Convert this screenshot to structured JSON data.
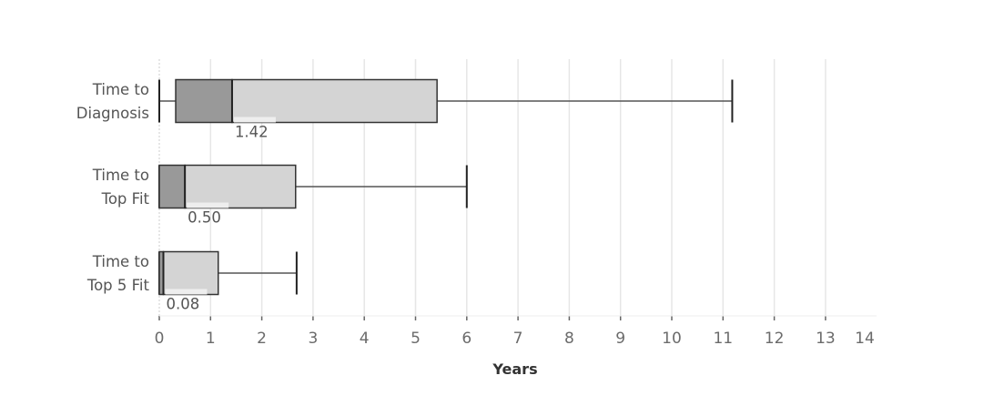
{
  "chart_data": {
    "type": "boxplot",
    "orientation": "horizontal",
    "xlabel": "Years",
    "xlim": [
      0,
      14
    ],
    "xticks": [
      "0",
      "1",
      "2",
      "3",
      "4",
      "5",
      "6",
      "7",
      "8",
      "9",
      "10",
      "11",
      "12",
      "13",
      "14"
    ],
    "grid": "vertical",
    "colors": {
      "lower_box": "#999999",
      "upper_box": "#d4d4d4",
      "outline": "#333333",
      "grid": "#e6e6e6"
    },
    "categories": [
      {
        "label_lines": [
          "Time to",
          "Diagnosis"
        ],
        "min": 0,
        "q1": 0.32,
        "median": 1.42,
        "q3": 5.42,
        "max": 11.18,
        "median_label": "1.42"
      },
      {
        "label_lines": [
          "Time to",
          "Top Fit"
        ],
        "min": 0,
        "q1": 0,
        "median": 0.5,
        "q3": 2.66,
        "max": 6.0,
        "median_label": "0.50"
      },
      {
        "label_lines": [
          "Time to",
          "Top 5 Fit"
        ],
        "min": 0,
        "q1": 0,
        "median": 0.08,
        "q3": 1.15,
        "max": 2.68,
        "median_label": "0.08"
      }
    ]
  }
}
